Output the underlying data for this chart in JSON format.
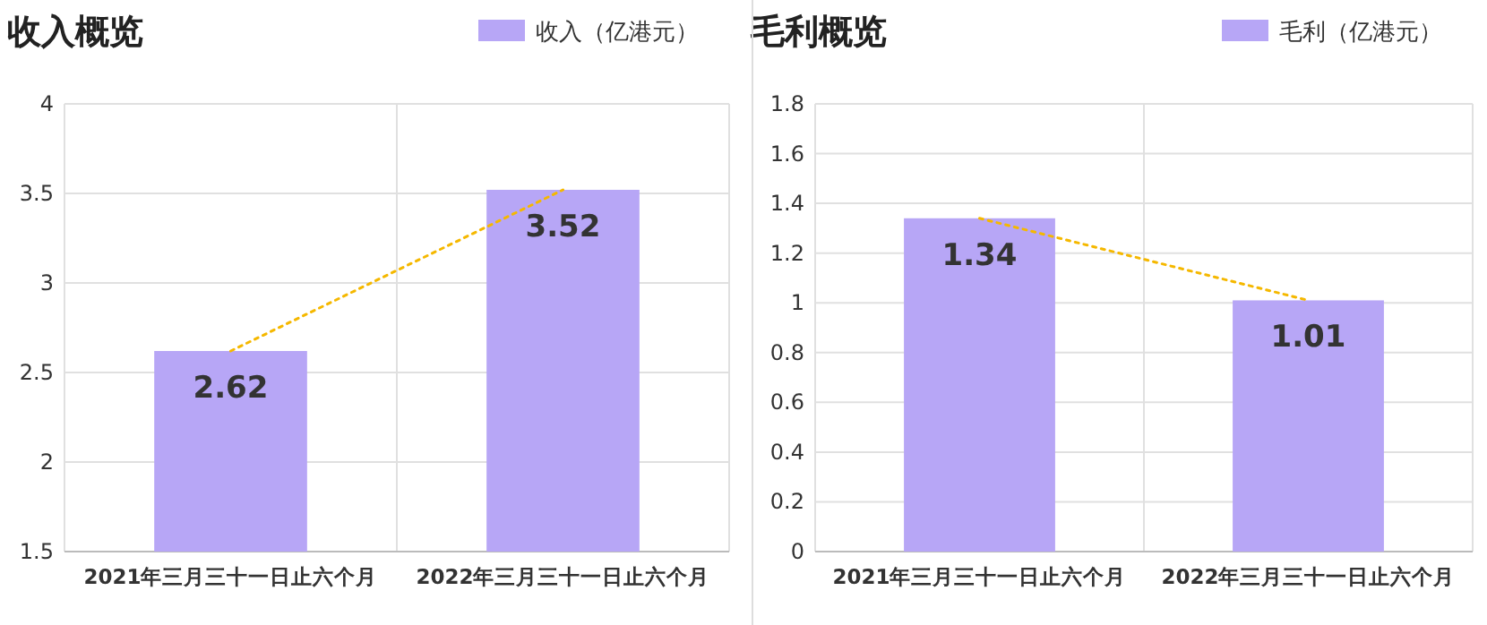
{
  "chart_data": [
    {
      "type": "bar",
      "title": "收入概览",
      "categories": [
        "2021年三月三十一日止六个月",
        "2022年三月三十一日止六个月"
      ],
      "series": [
        {
          "name": "收入（亿港元）",
          "color": "#b7a6f6",
          "values": [
            2.62,
            3.52
          ],
          "value_labels": [
            "2.62",
            "3.52"
          ]
        },
        {
          "type": "line",
          "color": "#f5b800",
          "values": [
            2.62,
            3.52
          ],
          "line_style": "dotted"
        }
      ],
      "ylim": [
        1.5,
        4
      ],
      "yticks": [
        1.5,
        2,
        2.5,
        3,
        3.5,
        4
      ],
      "grid": true,
      "legend": "top right"
    },
    {
      "type": "bar",
      "title": "毛利概览",
      "categories": [
        "2021年三月三十一日止六个月",
        "2022年三月三十一日止六个月"
      ],
      "series": [
        {
          "name": "毛利（亿港元）",
          "color": "#b7a6f6",
          "values": [
            1.34,
            1.01
          ],
          "value_labels": [
            "1.34",
            "1.01"
          ]
        },
        {
          "type": "line",
          "color": "#f5b800",
          "values": [
            1.34,
            1.01
          ],
          "line_style": "dotted"
        }
      ],
      "ylim": [
        0,
        1.8
      ],
      "yticks": [
        0,
        0.2,
        0.4,
        0.6,
        0.8,
        1,
        1.2,
        1.4,
        1.6,
        1.8
      ],
      "grid": true,
      "legend": "top right"
    }
  ]
}
